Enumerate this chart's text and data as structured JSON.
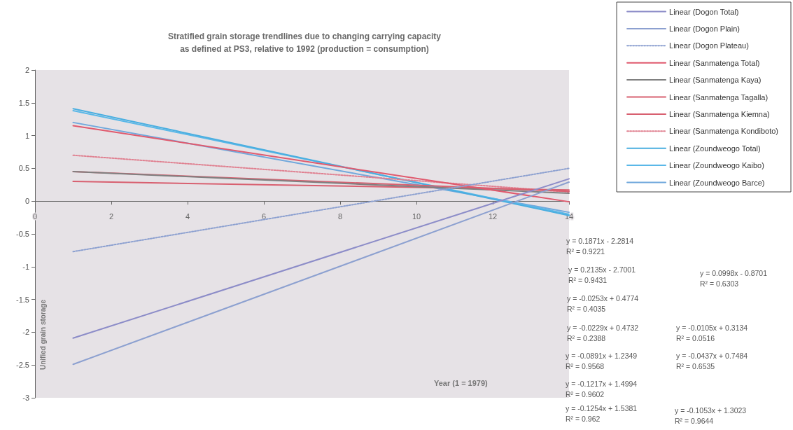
{
  "chart_data": {
    "type": "line",
    "title": "Stratified grain storage trendlines due to changing carrying capacity\nas defined at PS3, relative to 1992 (production = consumption)",
    "xlabel": "Year (1 = 1979)",
    "ylabel": "Unified grain storage",
    "x": [
      1,
      14
    ],
    "xlim": [
      0,
      14
    ],
    "xticks": [
      0,
      2,
      4,
      6,
      8,
      10,
      12,
      14
    ],
    "ylim": [
      -3,
      2
    ],
    "yticks": [
      -3,
      -2.5,
      -2,
      -1.5,
      -1,
      -0.5,
      0,
      0.5,
      1,
      1.5,
      2
    ],
    "grid": false,
    "legend": "top right",
    "marker": "none",
    "line_style": "solid",
    "series": [
      {
        "name": "Linear (Dogon Total)",
        "color": "#8c8cc8",
        "values": [
          -2.09,
          0.34
        ]
      },
      {
        "name": "Linear (Dogon Plain)",
        "color": "#8ca0d0",
        "values": [
          -2.49,
          0.29
        ]
      },
      {
        "name": "Linear (Dogon Plateau)",
        "color": "#8ca0d0",
        "values": [
          -0.77,
          0.5
        ],
        "line_style": "dotted"
      },
      {
        "name": "Linear (Sanmatenga Total)",
        "color": "#e05a6e",
        "values": [
          1.15,
          -0.01
        ]
      },
      {
        "name": "Linear (Sanmatenga Kaya)",
        "color": "#808080",
        "values": [
          0.45,
          0.12
        ]
      },
      {
        "name": "Linear (Sanmatenga Tagalla)",
        "color": "#d86070",
        "values": [
          0.3,
          0.17
        ]
      },
      {
        "name": "Linear (Sanmatenga Kiemna)",
        "color": "#d86070",
        "values": [
          0.45,
          0.15
        ]
      },
      {
        "name": "Linear (Sanmatenga Kondiboto)",
        "color": "#e08090",
        "values": [
          0.7,
          0.14
        ],
        "line_style": "dotted"
      },
      {
        "name": "Linear (Zoundweogo Total)",
        "color": "#4aaee0",
        "values": [
          1.41,
          -0.22
        ]
      },
      {
        "name": "Linear (Zoundweogo Kaibo)",
        "color": "#5ab8e8",
        "values": [
          1.38,
          -0.2
        ]
      },
      {
        "name": "Linear (Zoundweogo Barce)",
        "color": "#70a8dc",
        "values": [
          1.2,
          -0.17
        ]
      }
    ],
    "annotations": [
      "y = 0.1871x - 2.2814\nR² = 0.9221",
      "y = 0.2135x - 2.7001\nR² = 0.9431",
      "y = 0.0998x - 0.8701\nR² = 0.6303",
      "y = -0.0253x + 0.4774\nR² = 0.4035",
      "y = -0.0229x + 0.4732\nR² = 0.2388",
      "y = -0.0105x + 0.3134\nR² = 0.0516",
      "y = -0.0891x + 1.2349\nR² = 0.9568",
      "y = -0.0437x + 0.7484\nR² = 0.6535",
      "y = -0.1217x + 1.4994\nR² = 0.9602",
      "y = -0.1254x + 1.5381\nR² = 0.962",
      "y = -0.1053x + 1.3023\nR² = 0.9644"
    ]
  }
}
